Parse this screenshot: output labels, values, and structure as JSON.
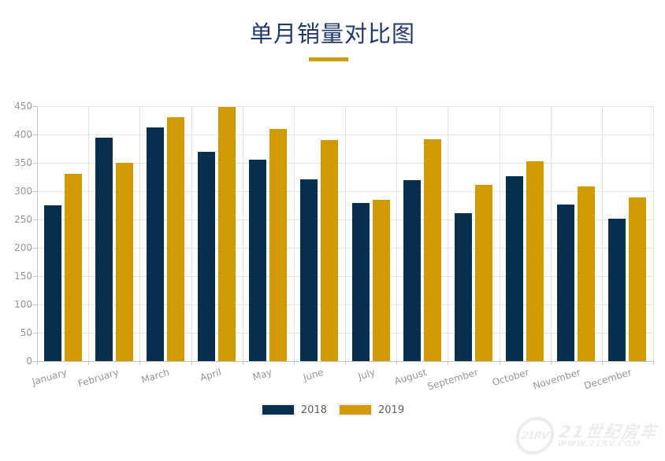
{
  "chart_data": {
    "type": "bar",
    "title": "单月销量对比图",
    "categories": [
      "January",
      "February",
      "March",
      "April",
      "May",
      "June",
      "July",
      "August",
      "September",
      "October",
      "November",
      "December"
    ],
    "series": [
      {
        "name": "2018",
        "color": "#082f4d",
        "values": [
          275,
          395,
          413,
          370,
          356,
          321,
          279,
          320,
          261,
          326,
          277,
          252
        ]
      },
      {
        "name": "2019",
        "color": "#d09a02",
        "values": [
          330,
          350,
          431,
          448,
          410,
          390,
          285,
          391,
          311,
          353,
          308,
          289
        ]
      }
    ],
    "xlabel": "",
    "ylabel": "",
    "ylim": [
      0,
      450
    ],
    "ytick_interval": 50,
    "yticks": [
      0,
      50,
      100,
      150,
      200,
      250,
      300,
      350,
      400,
      450
    ],
    "grid": "on",
    "legend_position": "bottom"
  },
  "colors": {
    "accent_navy": "#082f4d",
    "accent_gold": "#d09a02",
    "title_text": "#21396f",
    "axis_label": "#949494"
  },
  "watermark": {
    "logo": "21RV",
    "brand": "21世纪房车",
    "url": "WWW.21RV.COM"
  }
}
